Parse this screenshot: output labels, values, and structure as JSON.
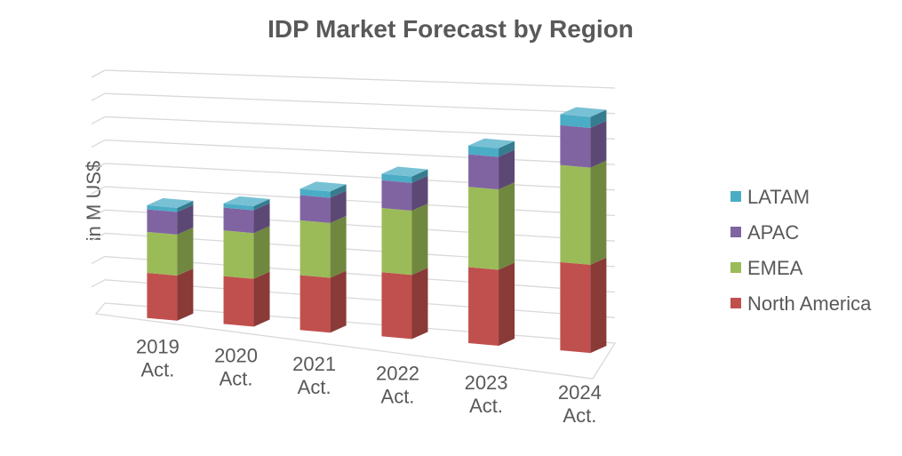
{
  "chart_data": {
    "type": "bar",
    "stacked": true,
    "three_d": true,
    "title": "IDP Market Forecast by Region",
    "xlabel": "",
    "ylabel": "in M US$",
    "categories": [
      "2019 Act.",
      "2020 Act.",
      "2021 Act.",
      "2022 Act.",
      "2023 Act.",
      "2024 Act."
    ],
    "series": [
      {
        "name": "North America",
        "color": "#c0504d",
        "values": [
          2.2,
          2.3,
          2.6,
          3.0,
          3.5,
          4.0
        ]
      },
      {
        "name": "EMEA",
        "color": "#9bbb59",
        "values": [
          2.0,
          2.2,
          2.6,
          3.0,
          3.7,
          4.4
        ]
      },
      {
        "name": "APAC",
        "color": "#8064a2",
        "values": [
          1.1,
          1.1,
          1.2,
          1.3,
          1.5,
          1.8
        ]
      },
      {
        "name": "LATAM",
        "color": "#4bacc6",
        "values": [
          0.2,
          0.2,
          0.3,
          0.3,
          0.4,
          0.5
        ]
      }
    ],
    "ylim": [
      0,
      12
    ],
    "y_ticks_shown": false,
    "grid": true,
    "legend": "right"
  }
}
